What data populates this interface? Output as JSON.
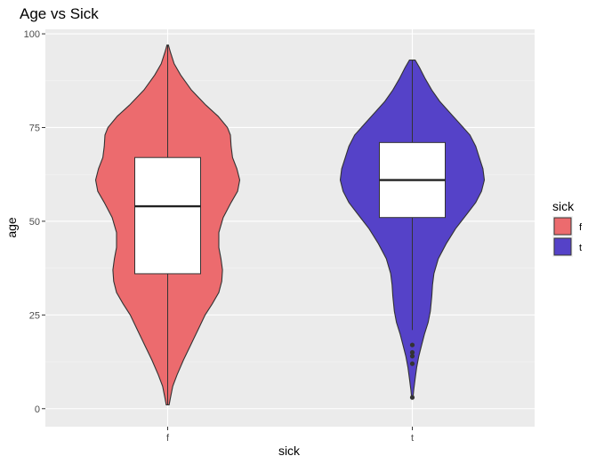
{
  "chart_data": {
    "type": "violin",
    "title": "Age vs Sick",
    "xlabel": "sick",
    "ylabel": "age",
    "ylim": [
      -4.8,
      101.2
    ],
    "yticks": [
      0,
      25,
      50,
      75,
      100
    ],
    "categories": [
      "f",
      "t"
    ],
    "grid": true,
    "legend": {
      "title": "sick",
      "position": "right",
      "entries": [
        {
          "label": "f",
          "color": "#ec6b6e"
        },
        {
          "label": "t",
          "color": "#5542c8"
        }
      ]
    },
    "series": [
      {
        "category": "f",
        "color": "#ec6b6e",
        "box": {
          "q1": 36,
          "median": 54,
          "q3": 67,
          "whisker_low": 1,
          "whisker_high": 97
        },
        "outliers": [],
        "density": [
          [
            1,
            0.02
          ],
          [
            3,
            0.04
          ],
          [
            6,
            0.07
          ],
          [
            9,
            0.13
          ],
          [
            13,
            0.22
          ],
          [
            17,
            0.32
          ],
          [
            21,
            0.42
          ],
          [
            25,
            0.52
          ],
          [
            28,
            0.62
          ],
          [
            31,
            0.71
          ],
          [
            34,
            0.75
          ],
          [
            37,
            0.76
          ],
          [
            40,
            0.74
          ],
          [
            43,
            0.71
          ],
          [
            47,
            0.71
          ],
          [
            51,
            0.77
          ],
          [
            55,
            0.88
          ],
          [
            58,
            0.97
          ],
          [
            61,
            1.0
          ],
          [
            64,
            0.96
          ],
          [
            67,
            0.9
          ],
          [
            70,
            0.88
          ],
          [
            73,
            0.87
          ],
          [
            75,
            0.83
          ],
          [
            78,
            0.7
          ],
          [
            81,
            0.53
          ],
          [
            85,
            0.33
          ],
          [
            89,
            0.18
          ],
          [
            92,
            0.09
          ],
          [
            95,
            0.04
          ],
          [
            97,
            0.01
          ]
        ]
      },
      {
        "category": "t",
        "color": "#5542c8",
        "box": {
          "q1": 51,
          "median": 61,
          "q3": 71,
          "whisker_low": 21,
          "whisker_high": 93
        },
        "outliers": [
          17,
          15,
          14,
          12,
          3
        ],
        "density": [
          [
            3,
            0.01
          ],
          [
            5,
            0.02
          ],
          [
            8,
            0.04
          ],
          [
            11,
            0.06
          ],
          [
            14,
            0.09
          ],
          [
            17,
            0.13
          ],
          [
            20,
            0.17
          ],
          [
            23,
            0.22
          ],
          [
            26,
            0.25
          ],
          [
            30,
            0.27
          ],
          [
            33,
            0.28
          ],
          [
            36,
            0.3
          ],
          [
            40,
            0.36
          ],
          [
            44,
            0.47
          ],
          [
            48,
            0.6
          ],
          [
            52,
            0.76
          ],
          [
            55,
            0.88
          ],
          [
            58,
            0.96
          ],
          [
            61,
            1.0
          ],
          [
            64,
            0.98
          ],
          [
            67,
            0.93
          ],
          [
            70,
            0.88
          ],
          [
            73,
            0.8
          ],
          [
            76,
            0.66
          ],
          [
            79,
            0.52
          ],
          [
            82,
            0.38
          ],
          [
            85,
            0.27
          ],
          [
            88,
            0.18
          ],
          [
            91,
            0.1
          ],
          [
            93,
            0.04
          ]
        ]
      }
    ]
  }
}
